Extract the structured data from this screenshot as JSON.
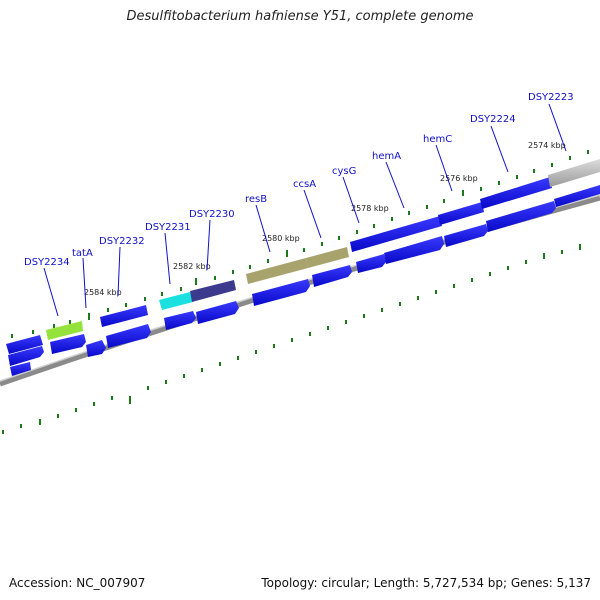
{
  "title": "Desulfitobacterium hafniense Y51, complete genome",
  "footer": {
    "accession": "Accession: NC_007907",
    "summary": "Topology: circular; Length: 5,727,534 bp; Genes: 5,137"
  },
  "colors": {
    "gene_blue": "#1010e0",
    "gene_olive": "#a8a26c",
    "gene_lime": "#96e23c",
    "gene_cyan": "#1ae0e0",
    "gene_navy": "#3c3a8c",
    "gene_gray": "#bdbdbd",
    "tick_green": "#1a7a1a",
    "label_blue": "#1010c8",
    "backbone_gray": "#8a8a8a"
  },
  "kbp_labels": [
    "2584 kbp",
    "2582 kbp",
    "2580 kbp",
    "2578 kbp",
    "2576 kbp",
    "2574 kbp"
  ],
  "gene_labels": [
    "DSY2234",
    "tatA",
    "DSY2232",
    "DSY2231",
    "DSY2230",
    "resB",
    "ccsA",
    "cysG",
    "hemA",
    "hemC",
    "DSY2224",
    "DSY2223"
  ]
}
